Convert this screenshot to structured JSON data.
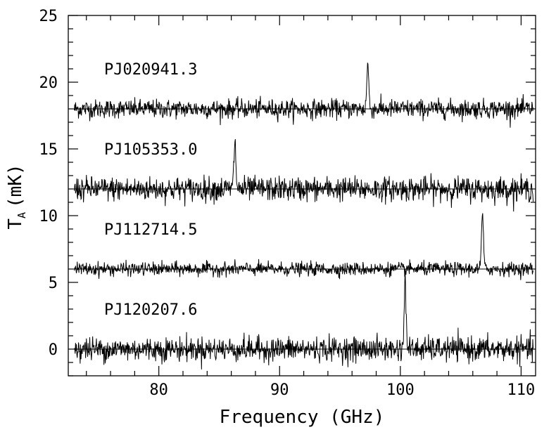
{
  "chart_data": {
    "type": "line",
    "xlabel": "Frequency (GHz)",
    "ylabel": "T",
    "ylabel_sub": "A",
    "ylabel_unit": "(mK)",
    "xlim": [
      72.5,
      111.2
    ],
    "ylim": [
      -2,
      25
    ],
    "x_ticks": [
      80,
      90,
      100,
      110
    ],
    "x_minor_step": 2,
    "y_ticks": [
      0,
      5,
      10,
      15,
      20,
      25
    ],
    "y_minor_step": 1,
    "x_tick_labels": [
      "80",
      "90",
      "100",
      "110"
    ],
    "y_tick_labels": [
      "0",
      "5",
      "10",
      "15",
      "20",
      "25"
    ],
    "freq_range": [
      73.0,
      111.0
    ],
    "series": [
      {
        "name": "PJ020941.3",
        "offset": 18,
        "noise_rms": 0.35,
        "line_center": 97.3,
        "line_peak": 3.4
      },
      {
        "name": "PJ105353.0",
        "offset": 12,
        "noise_rms": 0.45,
        "line_center": 86.3,
        "line_peak": 3.6
      },
      {
        "name": "PJ112714.5",
        "offset": 6,
        "noise_rms": 0.25,
        "line_center": 106.8,
        "line_peak": 4.2
      },
      {
        "name": "PJ120207.6",
        "offset": 0,
        "noise_rms": 0.45,
        "line_center": 100.4,
        "line_peak": 5.2
      }
    ],
    "grid": false,
    "legend": "none"
  }
}
